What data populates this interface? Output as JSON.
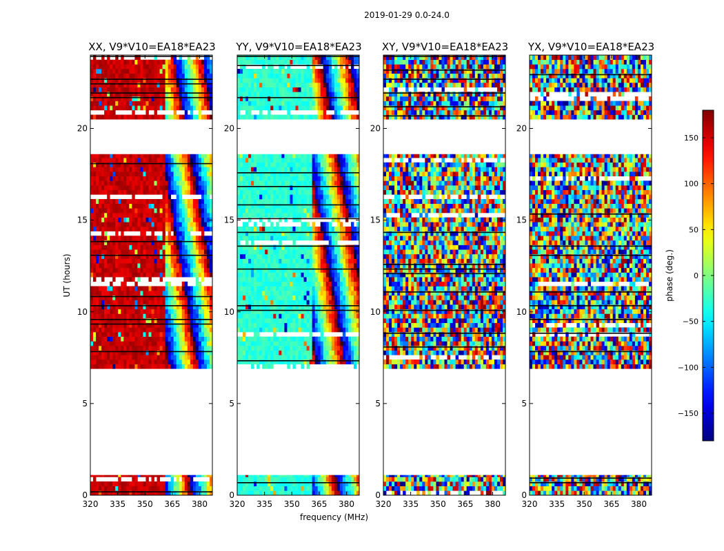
{
  "figure_title": "2019-01-29 0.0-24.0",
  "chart_data": [
    {
      "type": "heatmap",
      "title": "XX, V9*V10=EA18*EA23",
      "pattern": "xx",
      "xlabel": "",
      "ylabel": "UT (hours)",
      "xlim": [
        320,
        387
      ],
      "ylim": [
        0,
        24
      ],
      "xticks": [
        320,
        335,
        350,
        365,
        380
      ],
      "yticks": [
        0,
        5,
        10,
        15,
        20
      ],
      "data_time_ranges_hours": [
        [
          0,
          1.1
        ],
        [
          6.9,
          18.6
        ],
        [
          20.5,
          24
        ]
      ],
      "dominant_phase_deg": 155,
      "coherent_freq_range_mhz": [
        320,
        361
      ],
      "show_ytick_labels": true
    },
    {
      "type": "heatmap",
      "title": "YY, V9*V10=EA18*EA23",
      "pattern": "yy",
      "xlabel": "frequency (MHz)",
      "ylabel": "",
      "xlim": [
        320,
        387
      ],
      "ylim": [
        0,
        24
      ],
      "xticks": [
        320,
        335,
        350,
        365,
        380
      ],
      "yticks": [
        0,
        5,
        10,
        15,
        20
      ],
      "data_time_ranges_hours": [
        [
          0,
          1.1
        ],
        [
          6.9,
          18.6
        ],
        [
          20.5,
          24
        ]
      ],
      "dominant_phase_deg": -30,
      "coherent_freq_range_mhz": [
        320,
        361
      ],
      "show_ytick_labels": true
    },
    {
      "type": "heatmap",
      "title": "XY, V9*V10=EA18*EA23",
      "pattern": "noise",
      "xlabel": "",
      "ylabel": "",
      "xlim": [
        320,
        387
      ],
      "ylim": [
        0,
        24
      ],
      "xticks": [
        320,
        335,
        350,
        365,
        380
      ],
      "yticks": [
        0,
        5,
        10,
        15,
        20
      ],
      "data_time_ranges_hours": [
        [
          0,
          1.1
        ],
        [
          6.9,
          18.6
        ],
        [
          20.5,
          24
        ]
      ],
      "show_ytick_labels": true
    },
    {
      "type": "heatmap",
      "title": "YX, V9*V10=EA18*EA23",
      "pattern": "noise",
      "xlabel": "",
      "ylabel": "",
      "xlim": [
        320,
        387
      ],
      "ylim": [
        0,
        24
      ],
      "xticks": [
        320,
        335,
        350,
        365,
        380
      ],
      "yticks": [
        0,
        5,
        10,
        15,
        20
      ],
      "data_time_ranges_hours": [
        [
          0,
          1.1
        ],
        [
          6.9,
          18.6
        ],
        [
          20.5,
          24
        ]
      ],
      "show_ytick_labels": true
    }
  ],
  "colorbar": {
    "label": "phase (deg.)",
    "range": [
      -180,
      180
    ],
    "ticks": [
      150,
      100,
      50,
      0,
      -50,
      -100,
      -150
    ],
    "tick_labels": [
      "150",
      "100",
      "50",
      "0",
      "−50",
      "−100",
      "−150"
    ],
    "colormap": "jet"
  },
  "colors": {
    "axis": "#000000",
    "background": "#ffffff"
  }
}
